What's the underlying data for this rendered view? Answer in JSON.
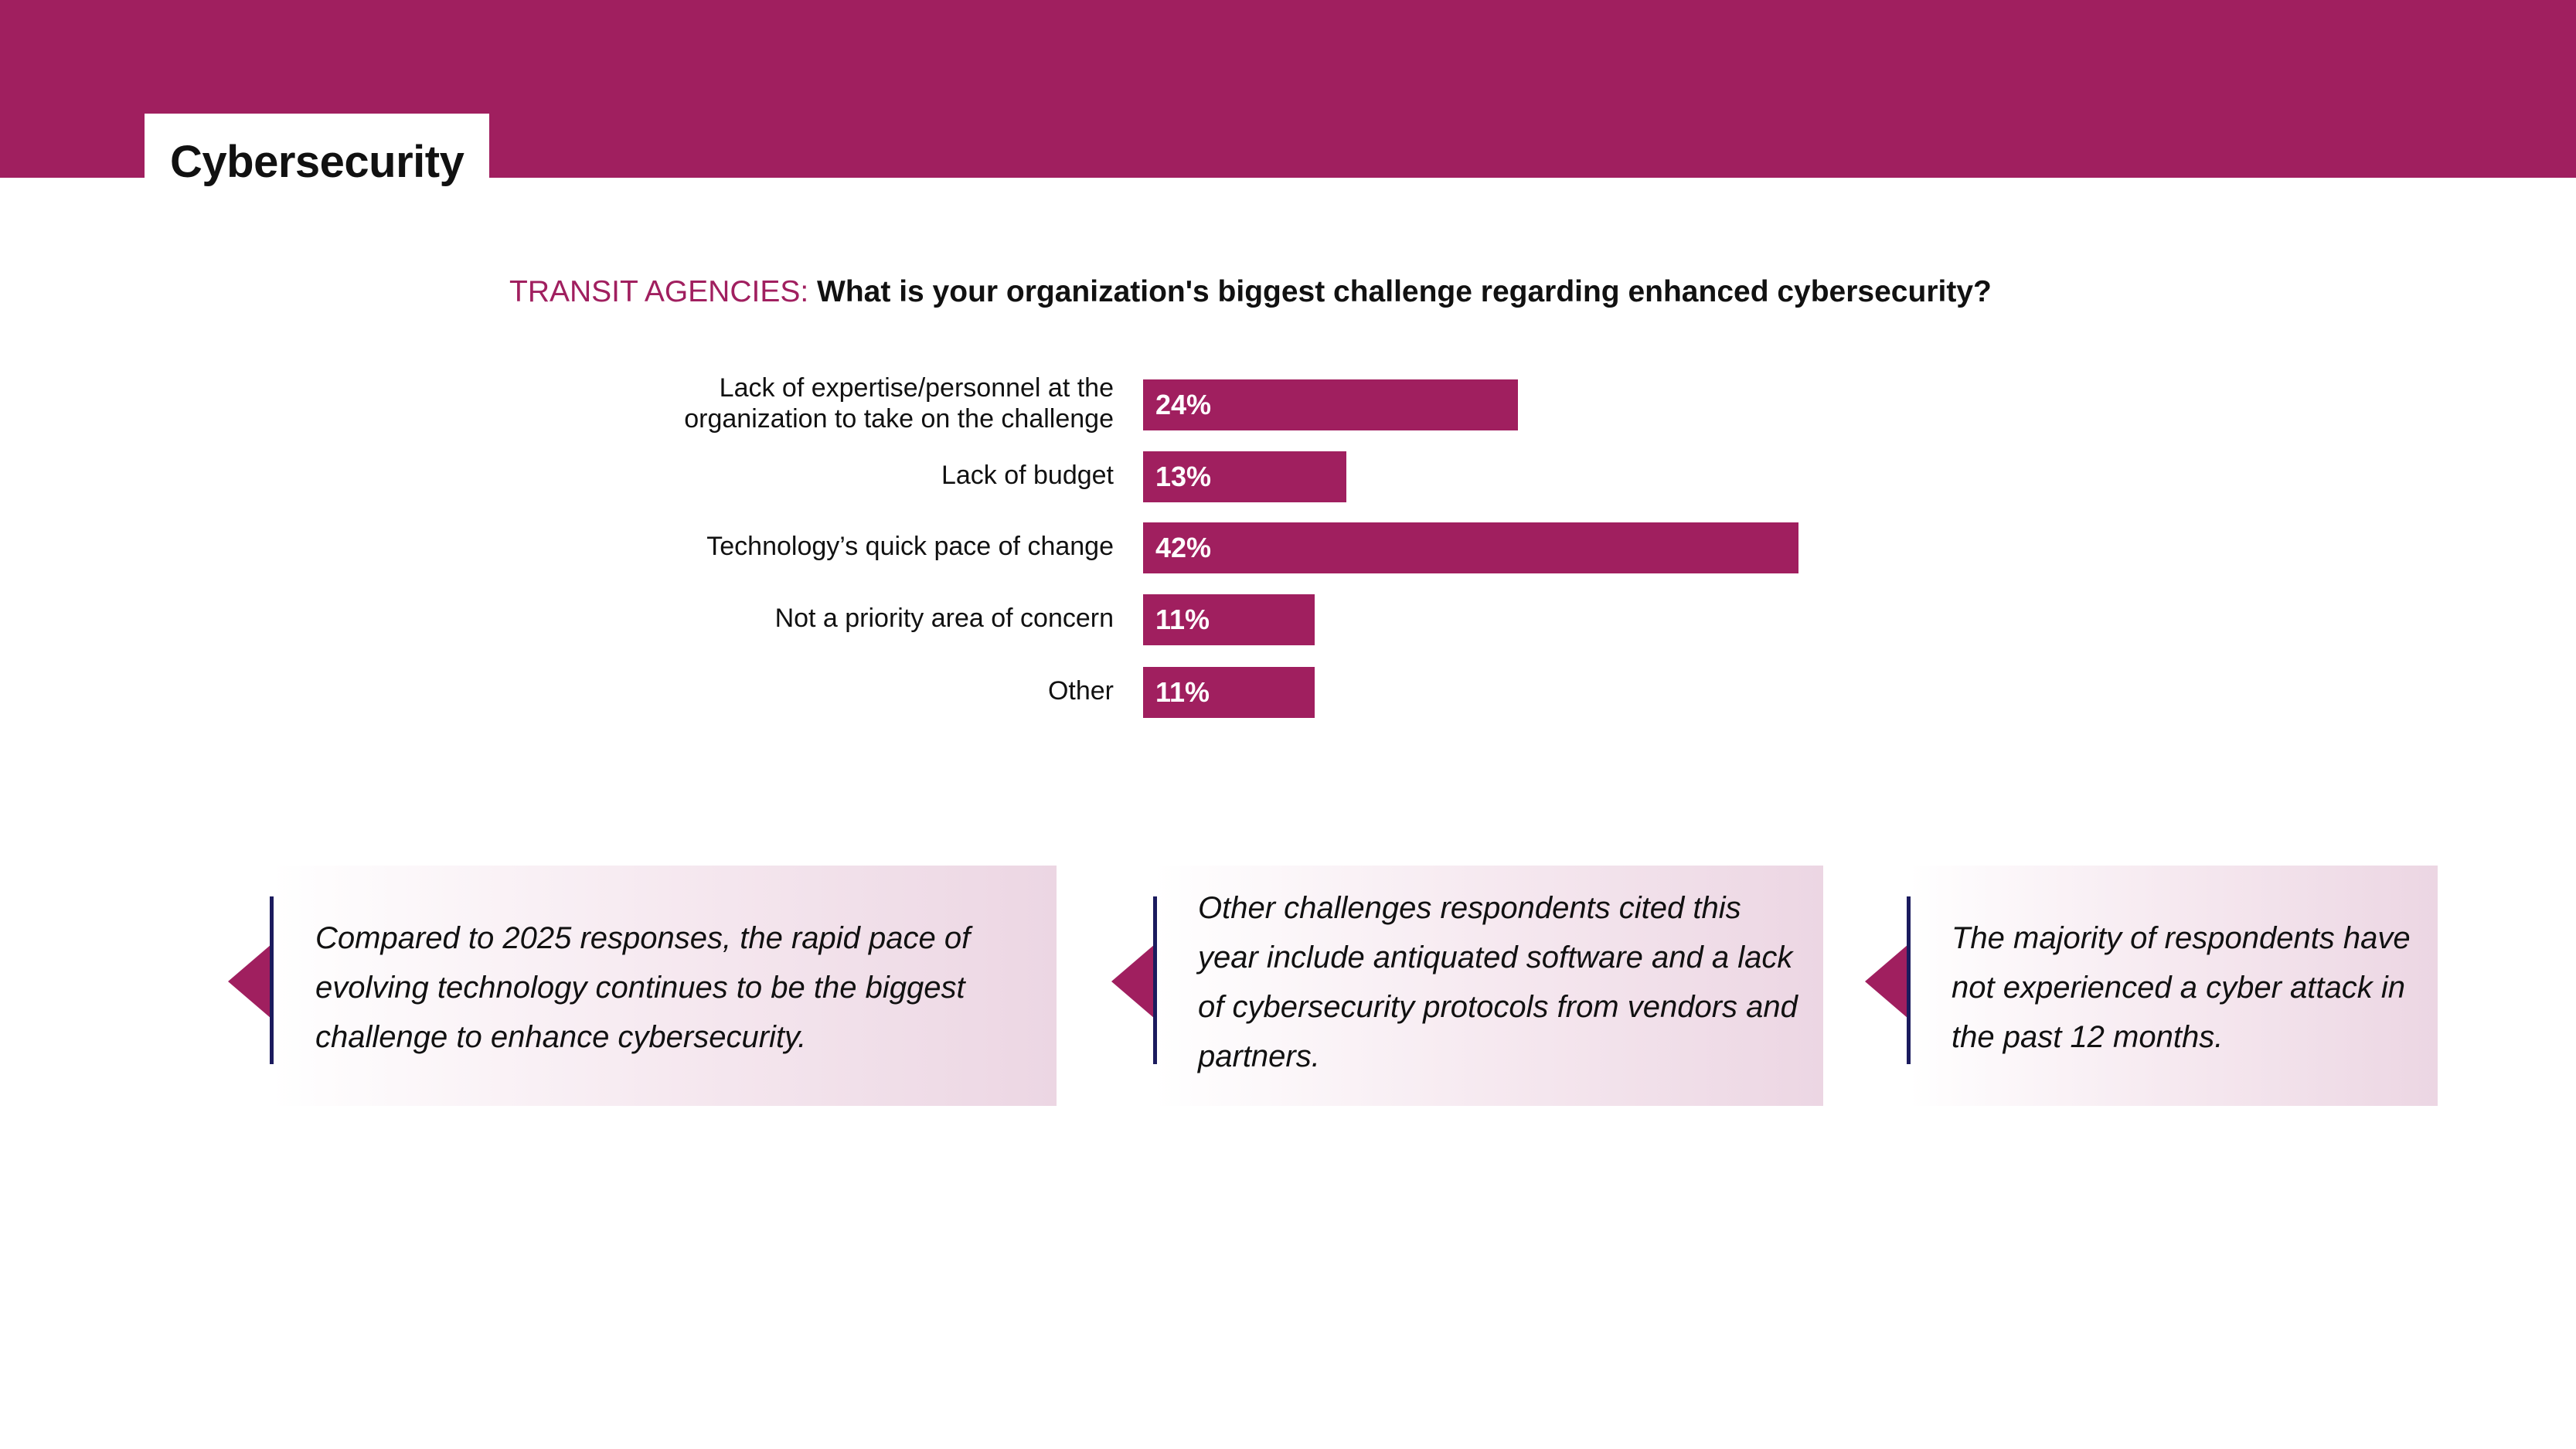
{
  "header": {
    "title": "Cybersecurity"
  },
  "colors": {
    "accent": "#a01f5f",
    "divider": "#1b1b5e"
  },
  "question": {
    "prefix": "TRANSIT AGENCIES:",
    "text": "What is your organization's biggest challenge regarding enhanced cybersecurity?"
  },
  "chart_data": {
    "type": "bar",
    "orientation": "horizontal",
    "categories": [
      "Lack of expertise/personnel at the organization to take on the challenge",
      "Lack of budget",
      "Technology’s quick pace of change",
      "Not a priority area of concern",
      "Other"
    ],
    "values": [
      24,
      13,
      42,
      11,
      11
    ],
    "data_labels": [
      "24%",
      "13%",
      "42%",
      "11%",
      "11%"
    ],
    "label_lines": [
      [
        "Lack of expertise/personnel at the",
        "organization to take on the challenge"
      ],
      [
        "Lack of budget"
      ],
      [
        "Technology’s quick pace of change"
      ],
      [
        "Not a priority area of concern"
      ],
      [
        "Other"
      ]
    ],
    "unit": "%",
    "grid": false
  },
  "callouts": [
    {
      "text": "Compared to 2025 responses, the rapid pace of evolving technology continues to be the biggest challenge to enhance cybersecurity."
    },
    {
      "text": "Other challenges respondents cited this year include antiquated software and a lack of cybersecurity protocols from vendors and partners."
    },
    {
      "text": "The majority of respondents have not experienced a cyber attack in the past 12 months."
    }
  ]
}
